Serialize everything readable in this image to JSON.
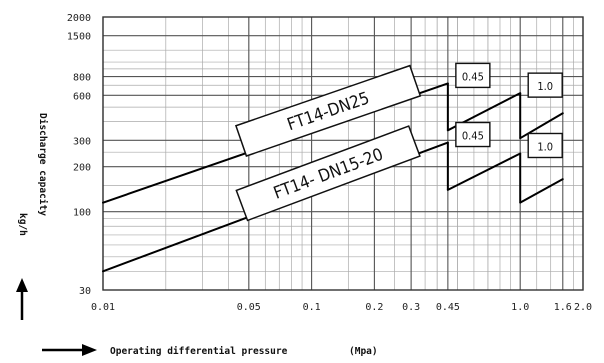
{
  "chart_data": {
    "type": "line",
    "xscale": "log",
    "yscale": "log",
    "xlim": [
      0.01,
      2.0
    ],
    "ylim": [
      30,
      2000
    ],
    "grid": true,
    "xlabel": "Operating differential pressure",
    "xunit": "(Mpa)",
    "ylabel": "Discharge capacity",
    "yunit": "kg/h",
    "x_ticks": [
      "0.01",
      "0.05",
      "0.1",
      "0.2",
      "0.3",
      "0.45",
      "1.0",
      "1.6",
      "2.0"
    ],
    "x_tick_values": [
      0.01,
      0.05,
      0.1,
      0.2,
      0.3,
      0.45,
      1.0,
      1.6,
      2.0
    ],
    "y_ticks": [
      "2000",
      "1500",
      "800",
      "600",
      "300",
      "200",
      "100",
      "30"
    ],
    "y_tick_values": [
      2000,
      1500,
      800,
      600,
      300,
      200,
      100,
      30
    ],
    "series": [
      {
        "name": "FT14-DN25",
        "segments": [
          {
            "pressure_label": "0.45",
            "x": [
              0.01,
              0.45
            ],
            "y": [
              115,
              720
            ]
          },
          {
            "pressure_label": "1.0",
            "x": [
              0.45,
              1.0
            ],
            "y": [
              350,
              620
            ]
          },
          {
            "pressure_label": "",
            "x": [
              1.0,
              1.6
            ],
            "y": [
              310,
              455
            ]
          }
        ]
      },
      {
        "name": "FT14- DN15-20",
        "segments": [
          {
            "pressure_label": "0.45",
            "x": [
              0.01,
              0.45
            ],
            "y": [
              40,
              290
            ]
          },
          {
            "pressure_label": "1.0",
            "x": [
              0.45,
              1.0
            ],
            "y": [
              140,
              245
            ]
          },
          {
            "pressure_label": "",
            "x": [
              1.0,
              1.6
            ],
            "y": [
              115,
              165
            ]
          }
        ]
      }
    ]
  }
}
